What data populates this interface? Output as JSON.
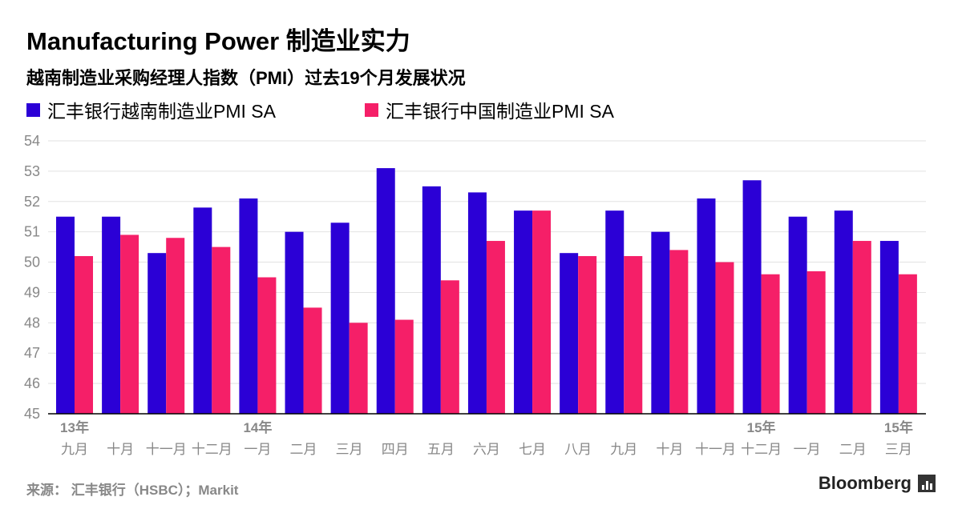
{
  "header": {
    "title": "Manufacturing Power 制造业实力",
    "subtitle": "越南制造业采购经理人指数（PMI）过去19个月发展状况"
  },
  "legend": [
    {
      "label": "汇丰银行越南制造业PMI SA",
      "color": "#2b00d6"
    },
    {
      "label": "汇丰银行中国制造业PMI SA",
      "color": "#f51f68"
    }
  ],
  "chart_data": {
    "type": "bar",
    "title": "Manufacturing Power 制造业实力",
    "subtitle": "越南制造业采购经理人指数（PMI）过去19个月发展状况",
    "categories": [
      "九月",
      "十月",
      "十一月",
      "十二月",
      "一月",
      "二月",
      "三月",
      "四月",
      "五月",
      "六月",
      "七月",
      "八月",
      "九月",
      "十月",
      "十一月",
      "十二月",
      "一月",
      "二月",
      "三月"
    ],
    "year_labels": [
      {
        "index": 0,
        "label": "13年"
      },
      {
        "index": 4,
        "label": "14年"
      },
      {
        "index": 15,
        "label": "15年"
      },
      {
        "index": 18,
        "label": "15年"
      }
    ],
    "series": [
      {
        "name": "汇丰银行越南制造业PMI SA",
        "color": "#2b00d6",
        "values": [
          51.5,
          51.5,
          50.3,
          51.8,
          52.1,
          51.0,
          51.3,
          53.1,
          52.5,
          52.3,
          51.7,
          50.3,
          51.7,
          51.0,
          52.1,
          52.7,
          51.5,
          51.7,
          50.7
        ]
      },
      {
        "name": "汇丰银行中国制造业PMI SA",
        "color": "#f51f68",
        "values": [
          50.2,
          50.9,
          50.8,
          50.5,
          49.5,
          48.5,
          48.0,
          48.1,
          49.4,
          50.7,
          51.7,
          50.2,
          50.2,
          50.4,
          50.0,
          49.6,
          49.7,
          50.7,
          49.6
        ]
      }
    ],
    "ylim": [
      45,
      54
    ],
    "yticks": [
      45,
      46,
      47,
      48,
      49,
      50,
      51,
      52,
      53,
      54
    ],
    "xlabel": "",
    "ylabel": "",
    "grid": true,
    "legend_position": "top-left"
  },
  "footer": {
    "source": "来源： 汇丰银行（HSBC）；Markit",
    "brand": "Bloomberg"
  }
}
